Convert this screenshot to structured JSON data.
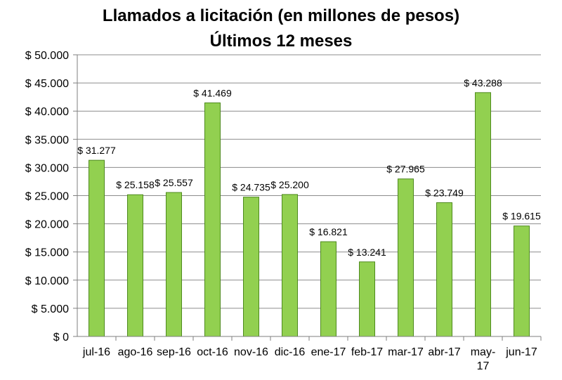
{
  "chart_data": {
    "type": "bar",
    "title_line1": "Llamados a licitación (en millones de pesos)",
    "title_line2": "Últimos 12 meses",
    "xlabel": "",
    "ylabel": "",
    "ylim": [
      0,
      50000
    ],
    "ytick_step": 5000,
    "ytick_labels": [
      "$ 0",
      "$ 5.000",
      "$ 10.000",
      "$ 15.000",
      "$ 20.000",
      "$ 25.000",
      "$ 30.000",
      "$ 35.000",
      "$ 40.000",
      "$ 45.000",
      "$ 50.000"
    ],
    "grid": true,
    "categories": [
      "jul-16",
      "ago-16",
      "sep-16",
      "oct-16",
      "nov-16",
      "dic-16",
      "ene-17",
      "feb-17",
      "mar-17",
      "abr-17",
      "may-17",
      "jun-17"
    ],
    "category_lines": [
      [
        "jul-16"
      ],
      [
        "ago-16"
      ],
      [
        "sep-16"
      ],
      [
        "oct-16"
      ],
      [
        "nov-16"
      ],
      [
        "dic-16"
      ],
      [
        "ene-17"
      ],
      [
        "feb-17"
      ],
      [
        "mar-17"
      ],
      [
        "abr-17"
      ],
      [
        "may-",
        "17"
      ],
      [
        "jun-17"
      ]
    ],
    "values": [
      31277,
      25158,
      25557,
      41469,
      24735,
      25200,
      16821,
      13241,
      27965,
      23749,
      43288,
      19615
    ],
    "value_labels": [
      "$ 31.277",
      "$ 25.158",
      "$ 25.557",
      "$ 41.469",
      "$ 24.735",
      "$ 25.200",
      "$ 16.821",
      "$ 13.241",
      "$ 27.965",
      "$ 23.749",
      "$ 43.288",
      "$ 19.615"
    ],
    "colors": {
      "bar_fill": "#92d050",
      "bar_stroke": "#4e8a1e",
      "grid": "#8c8c8c",
      "axis": "#7f7f7f"
    }
  }
}
